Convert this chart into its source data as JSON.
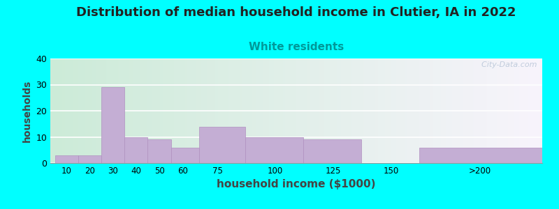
{
  "title": "Distribution of median household income in Clutier, IA in 2022",
  "subtitle": "White residents",
  "xlabel": "household income ($1000)",
  "ylabel": "households",
  "title_fontsize": 13,
  "subtitle_fontsize": 11,
  "subtitle_color": "#009999",
  "xlabel_fontsize": 11,
  "ylabel_fontsize": 10,
  "background_color": "#00ffff",
  "plot_bg_left": "#d0ecd8",
  "plot_bg_right": "#f5f2fa",
  "bar_color": "#c4aed4",
  "bar_edge_color": "#b090c0",
  "values": [
    3,
    3,
    29,
    10,
    9,
    6,
    14,
    10,
    9,
    0,
    6
  ],
  "bar_lefts": [
    5,
    15,
    25,
    35,
    45,
    55,
    67,
    87,
    112,
    137,
    162
  ],
  "bar_rights": [
    15,
    25,
    35,
    45,
    55,
    67,
    87,
    112,
    137,
    155,
    215
  ],
  "ylim": [
    0,
    40
  ],
  "yticks": [
    0,
    10,
    20,
    30,
    40
  ],
  "xtick_labels": [
    "10",
    "20",
    "30",
    "40",
    "50",
    "60",
    "75",
    "100",
    "125",
    "150",
    ">200"
  ],
  "xtick_positions": [
    10,
    20,
    30,
    40,
    50,
    60,
    75,
    100,
    125,
    150,
    188
  ],
  "xlim": [
    3,
    215
  ],
  "watermark": "  City-Data.com"
}
